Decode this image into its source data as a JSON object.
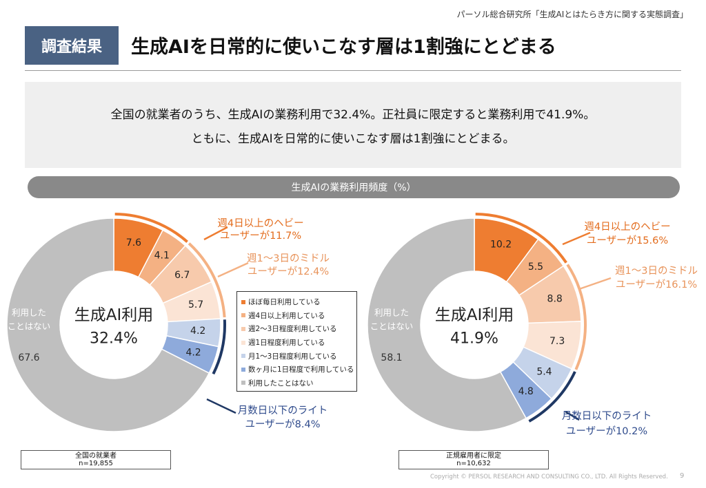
{
  "header": {
    "source": "パーソル総合研究所「生成AIとはたらき方に関する実態調査」",
    "tag": "調査結果",
    "title": "生成AIを日常的に使いこなす層は1割強にとどまる"
  },
  "summary": {
    "line1": "全国の就業者のうち、生成AIの業務利用で32.4%。正社員に限定すると業務利用で41.9%。",
    "line2": "ともに、生成AIを日常的に使いこなす層は1割強にとどまる。"
  },
  "section_label": "生成AIの業務利用頻度（%）",
  "colors": [
    "#ee7d31",
    "#f4b183",
    "#f7caac",
    "#fbe4d5",
    "#c5d3ea",
    "#8eaadb",
    "#bfbfbf"
  ],
  "group_colors": {
    "heavy": "#ee7d31",
    "middle": "#f4b183",
    "light": "#1f3864"
  },
  "legend": [
    "ほぼ毎日利用している",
    "週4日以上利用している",
    "週2～3日程度利用している",
    "週1日程度利用している",
    "月1～3日程度利用している",
    "数ヶ月に1日程度で利用している",
    "利用したことはない"
  ],
  "chart_data": [
    {
      "type": "pie",
      "title": "",
      "center_label": "生成AI利用",
      "center_value": "32.4%",
      "categories": [
        "ほぼ毎日利用している",
        "週4日以上利用している",
        "週2～3日程度利用している",
        "週1日程度利用している",
        "月1～3日程度利用している",
        "数ヶ月に1日程度で利用している",
        "利用したことはない"
      ],
      "values": [
        7.6,
        4.1,
        6.7,
        5.7,
        4.2,
        4.2,
        67.6
      ],
      "value_labels": [
        "7.6",
        "4.1",
        "6.7",
        "5.7",
        "4.2",
        "4.2",
        "67.6"
      ],
      "never_label": [
        "利用した",
        "ことはない"
      ],
      "groups": [
        {
          "line1": "週4日以上のヘビー",
          "line2": "ユーザーが11.7%"
        },
        {
          "line1": "週1～3日のミドル",
          "line2": "ユーザーが12.4%"
        },
        {
          "line1": "月数日以下のライト",
          "line2": "ユーザーが8.4%"
        }
      ],
      "sample_label": "全国の就業者",
      "n": "n=19,855"
    },
    {
      "type": "pie",
      "title": "",
      "center_label": "生成AI利用",
      "center_value": "41.9%",
      "categories": [
        "ほぼ毎日利用している",
        "週4日以上利用している",
        "週2～3日程度利用している",
        "週1日程度利用している",
        "月1～3日程度利用している",
        "数ヶ月に1日程度で利用している",
        "利用したことはない"
      ],
      "values": [
        10.2,
        5.5,
        8.8,
        7.3,
        5.4,
        4.8,
        58.1
      ],
      "value_labels": [
        "10.2",
        "5.5",
        "8.8",
        "7.3",
        "5.4",
        "4.8",
        "58.1"
      ],
      "never_label": [
        "利用した",
        "ことはない"
      ],
      "groups": [
        {
          "line1": "週4日以上のヘビー",
          "line2": "ユーザーが15.6%"
        },
        {
          "line1": "週1～3日のミドル",
          "line2": "ユーザーが16.1%"
        },
        {
          "line1": "月数日以下のライト",
          "line2": "ユーザーが10.2%"
        }
      ],
      "sample_label": "正規雇用者に限定",
      "n": "n=10,632"
    }
  ],
  "footer": {
    "copyright": "Copyright © PERSOL RESEARCH AND CONSULTING CO., LTD. All Rights Reserved.",
    "page": "9"
  }
}
